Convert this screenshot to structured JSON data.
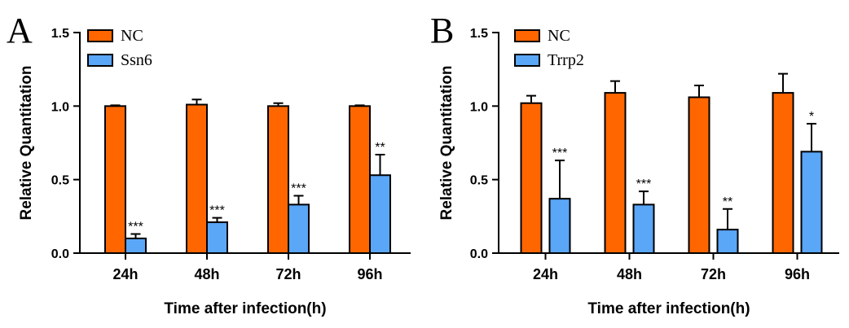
{
  "colors": {
    "nc": "#FF6600",
    "treat": "#5AA6F7",
    "axis": "#000000"
  },
  "chart_data": [
    {
      "type": "bar",
      "panel_label": "A",
      "categories": [
        "24h",
        "48h",
        "72h",
        "96h"
      ],
      "xlabel": "Time after infection(h)",
      "ylabel": "Relative Quantitation",
      "ylim": [
        0,
        1.5
      ],
      "yticks": [
        0.0,
        0.5,
        1.0,
        1.5
      ],
      "ytick_labels": [
        "0.0",
        "0.5",
        "1.0",
        "1.5"
      ],
      "series": [
        {
          "name": "NC",
          "values": [
            1.0,
            1.01,
            1.0,
            1.0
          ],
          "errors": [
            0.005,
            0.035,
            0.02,
            0.005
          ],
          "significance": [
            "",
            "",
            "",
            ""
          ]
        },
        {
          "name": "Ssn6",
          "values": [
            0.1,
            0.21,
            0.33,
            0.53
          ],
          "errors": [
            0.03,
            0.03,
            0.06,
            0.14
          ],
          "significance": [
            "***",
            "***",
            "***",
            "**"
          ]
        }
      ],
      "legend": {
        "position": "top-left",
        "entries": [
          "NC",
          "Ssn6"
        ]
      }
    },
    {
      "type": "bar",
      "panel_label": "B",
      "categories": [
        "24h",
        "48h",
        "72h",
        "96h"
      ],
      "xlabel": "Time after infection(h)",
      "ylabel": "Relative Quantitation",
      "ylim": [
        0,
        1.5
      ],
      "yticks": [
        0.0,
        0.5,
        1.0,
        1.5
      ],
      "ytick_labels": [
        "0.0",
        "0.5",
        "1.0",
        "1.5"
      ],
      "series": [
        {
          "name": "NC",
          "values": [
            1.02,
            1.09,
            1.06,
            1.09
          ],
          "errors": [
            0.05,
            0.08,
            0.08,
            0.13
          ],
          "significance": [
            "",
            "",
            "",
            ""
          ]
        },
        {
          "name": "Trrp2",
          "values": [
            0.37,
            0.33,
            0.16,
            0.69
          ],
          "errors": [
            0.26,
            0.09,
            0.14,
            0.19
          ],
          "significance": [
            "***",
            "***",
            "**",
            "*"
          ]
        }
      ],
      "legend": {
        "position": "top-left",
        "entries": [
          "NC",
          "Trrp2"
        ]
      }
    }
  ]
}
